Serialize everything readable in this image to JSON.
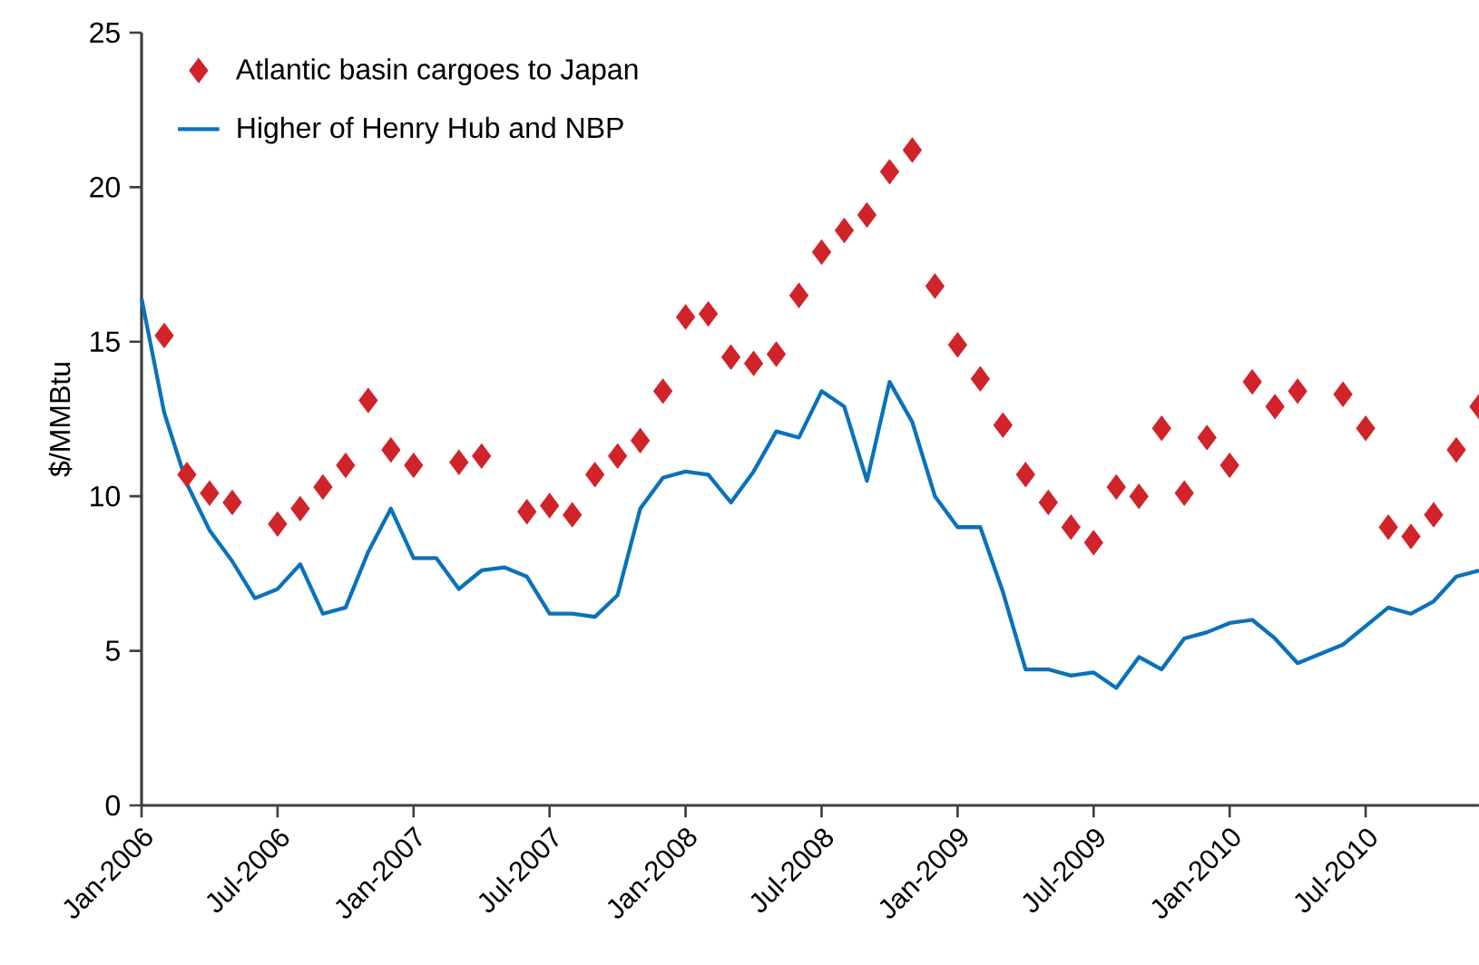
{
  "chart_data": {
    "type": "line",
    "ylabel": "$/MMBtu",
    "xlim": [
      "2006-01",
      "2010-12"
    ],
    "ylim": [
      0,
      25
    ],
    "xticks": [
      {
        "value": "2006-01",
        "label": "Jan-2006"
      },
      {
        "value": "2006-07",
        "label": "Jul-2006"
      },
      {
        "value": "2007-01",
        "label": "Jan-2007"
      },
      {
        "value": "2007-07",
        "label": "Jul-2007"
      },
      {
        "value": "2008-01",
        "label": "Jan-2008"
      },
      {
        "value": "2008-07",
        "label": "Jul-2008"
      },
      {
        "value": "2009-01",
        "label": "Jan-2009"
      },
      {
        "value": "2009-07",
        "label": "Jul-2009"
      },
      {
        "value": "2010-01",
        "label": "Jan-2010"
      },
      {
        "value": "2010-07",
        "label": "Jul-2010"
      }
    ],
    "yticks": [
      0,
      5,
      10,
      15,
      20,
      25
    ],
    "legend": "top left",
    "series": [
      {
        "name": "Atlantic basin cargoes to Japan",
        "type": "scatter",
        "marker": "diamond",
        "color": "#d0232a",
        "x": [
          "2006-02",
          "2006-03",
          "2006-04",
          "2006-05",
          "2006-07",
          "2006-08",
          "2006-09",
          "2006-10",
          "2006-11",
          "2006-12",
          "2007-01",
          "2007-03",
          "2007-04",
          "2007-06",
          "2007-07",
          "2007-08",
          "2007-09",
          "2007-10",
          "2007-11",
          "2007-12",
          "2008-01",
          "2008-02",
          "2008-03",
          "2008-04",
          "2008-05",
          "2008-06",
          "2008-07",
          "2008-08",
          "2008-09",
          "2008-10",
          "2008-11",
          "2008-12",
          "2009-01",
          "2009-02",
          "2009-03",
          "2009-04",
          "2009-05",
          "2009-06",
          "2009-07",
          "2009-08",
          "2009-09",
          "2009-10",
          "2009-11",
          "2009-12",
          "2010-01",
          "2010-02",
          "2010-03",
          "2010-04",
          "2010-06",
          "2010-07",
          "2010-08",
          "2010-09",
          "2010-10",
          "2010-11",
          "2010-12"
        ],
        "values": [
          15.2,
          10.7,
          10.1,
          9.8,
          9.1,
          9.6,
          10.3,
          11.0,
          13.1,
          11.5,
          11.0,
          11.1,
          11.3,
          9.5,
          9.7,
          9.4,
          10.7,
          11.3,
          11.8,
          13.4,
          15.8,
          15.9,
          14.5,
          14.3,
          14.6,
          16.5,
          17.9,
          18.6,
          19.1,
          20.5,
          21.2,
          16.8,
          14.9,
          13.8,
          12.3,
          10.7,
          9.8,
          9.0,
          8.5,
          10.3,
          10.0,
          12.2,
          10.1,
          11.9,
          11.0,
          13.7,
          12.9,
          13.4,
          13.3,
          12.2,
          9.0,
          8.7,
          9.4,
          11.5,
          12.9
        ]
      },
      {
        "name": "Higher of Henry Hub and NBP",
        "type": "line",
        "marker": "none",
        "color": "#0a72ba",
        "x": [
          "2006-01",
          "2006-02",
          "2006-03",
          "2006-04",
          "2006-05",
          "2006-06",
          "2006-07",
          "2006-08",
          "2006-09",
          "2006-10",
          "2006-11",
          "2006-12",
          "2007-01",
          "2007-02",
          "2007-03",
          "2007-04",
          "2007-05",
          "2007-06",
          "2007-07",
          "2007-08",
          "2007-09",
          "2007-10",
          "2007-11",
          "2007-12",
          "2008-01",
          "2008-02",
          "2008-03",
          "2008-04",
          "2008-05",
          "2008-06",
          "2008-07",
          "2008-08",
          "2008-09",
          "2008-10",
          "2008-11",
          "2008-12",
          "2009-01",
          "2009-02",
          "2009-03",
          "2009-04",
          "2009-05",
          "2009-06",
          "2009-07",
          "2009-08",
          "2009-09",
          "2009-10",
          "2009-11",
          "2009-12",
          "2010-01",
          "2010-02",
          "2010-03",
          "2010-04",
          "2010-05",
          "2010-06",
          "2010-07",
          "2010-08",
          "2010-09",
          "2010-10",
          "2010-11",
          "2010-12"
        ],
        "values": [
          16.4,
          12.7,
          10.4,
          8.9,
          7.9,
          6.7,
          7.0,
          7.8,
          6.2,
          6.4,
          8.2,
          9.6,
          8.0,
          8.0,
          7.0,
          7.6,
          7.7,
          7.4,
          6.2,
          6.2,
          6.1,
          6.8,
          9.6,
          10.6,
          10.8,
          10.7,
          9.8,
          10.8,
          12.1,
          11.9,
          13.4,
          12.9,
          10.5,
          13.7,
          12.4,
          10.0,
          9.0,
          9.0,
          6.9,
          4.4,
          4.4,
          4.2,
          4.3,
          3.8,
          4.8,
          4.4,
          5.4,
          5.6,
          5.9,
          6.0,
          5.4,
          4.6,
          4.9,
          5.2,
          5.8,
          6.4,
          6.2,
          6.6,
          7.4,
          7.6
        ]
      }
    ]
  }
}
